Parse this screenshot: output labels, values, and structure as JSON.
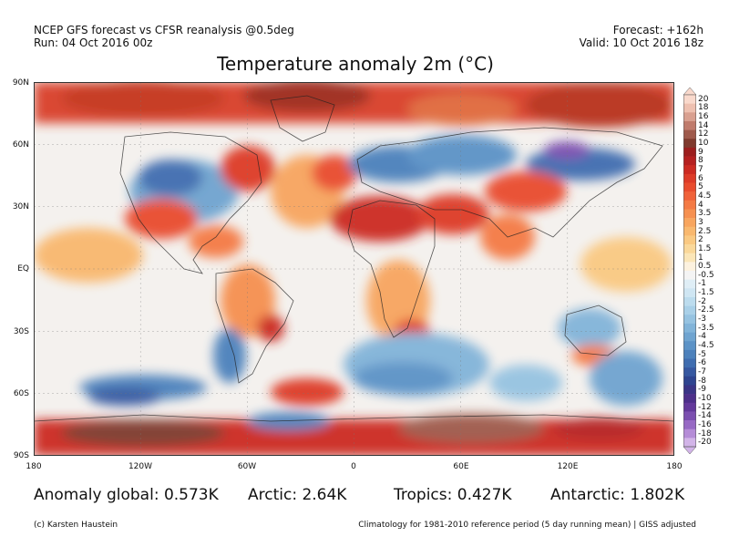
{
  "header": {
    "line1_left": "NCEP GFS forecast vs CFSR reanalysis @0.5deg",
    "line2_left": "Run: 04 Oct 2016 00z",
    "line1_right": "Forecast: +162h",
    "line2_right": "Valid: 10 Oct 2016 18z"
  },
  "title": "Temperature anomaly 2m (°C)",
  "axes": {
    "lat_labels": [
      "90N",
      "60N",
      "30N",
      "EQ",
      "30S",
      "60S",
      "90S"
    ],
    "lon_labels": [
      "180",
      "120W",
      "60W",
      "0",
      "60E",
      "120E",
      "180"
    ]
  },
  "colorbar": {
    "labels": [
      "20",
      "18",
      "16",
      "14",
      "12",
      "10",
      "9",
      "8",
      "7",
      "6",
      "5",
      "4.5",
      "4",
      "3.5",
      "3",
      "2.5",
      "2",
      "1.5",
      "1",
      "0.5",
      "-0.5",
      "-1",
      "-1.5",
      "-2",
      "-2.5",
      "-3",
      "-3.5",
      "-4",
      "-4.5",
      "-5",
      "-6",
      "-7",
      "-8",
      "-9",
      "-10",
      "-12",
      "-14",
      "-16",
      "-18",
      "-20"
    ],
    "colors": [
      "#f9d9cc",
      "#eec0b0",
      "#d9a090",
      "#c07b6c",
      "#9f5a4c",
      "#7f3a2e",
      "#9c1e1e",
      "#b52020",
      "#cc2a22",
      "#dd3b28",
      "#e94c2e",
      "#f0623a",
      "#f47a44",
      "#f69050",
      "#f8a55e",
      "#f9b86e",
      "#fac982",
      "#fad89a",
      "#fbe6b8",
      "#fdf2df",
      "#f4f4f4",
      "#dfeef6",
      "#cfe6f3",
      "#bcdcee",
      "#a9d0e8",
      "#96c3e1",
      "#82b4d9",
      "#6fa4d0",
      "#5c93c7",
      "#4c81bc",
      "#3f6db0",
      "#3658a1",
      "#2e4490",
      "#3a3486",
      "#4d2f8a",
      "#63399b",
      "#7b4fb0",
      "#9769c4",
      "#b58cd7",
      "#d2b4e8"
    ]
  },
  "stats": {
    "global": "Anomaly global: 0.573K",
    "arctic": "Arctic: 2.64K",
    "tropics": "Tropics: 0.427K",
    "antarctic": "Antarctic: 1.802K"
  },
  "footer": {
    "left": "(c) Karsten Haustein",
    "right": "Climatology for 1981-2010 reference period (5 day running mean) | GISS adjusted"
  }
}
